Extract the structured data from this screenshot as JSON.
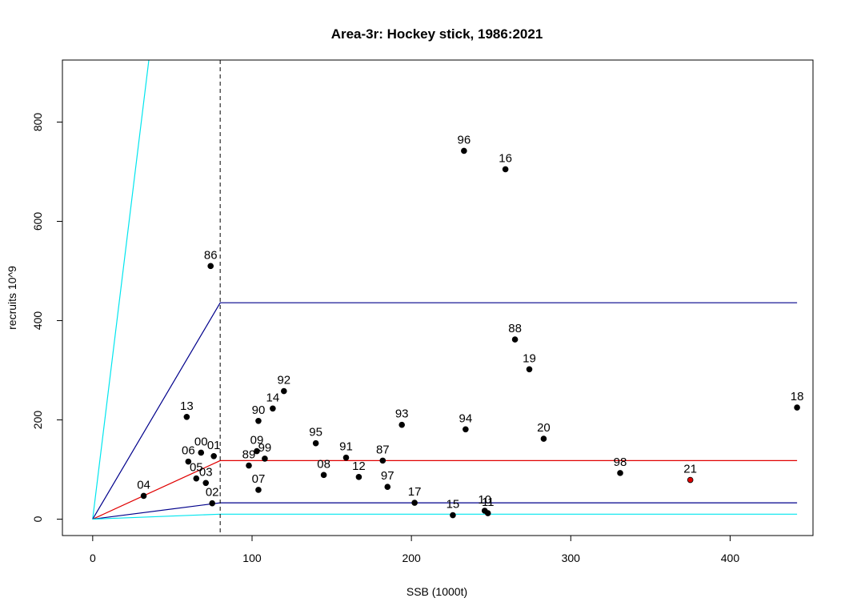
{
  "chart_data": {
    "type": "scatter",
    "title": "Area-3r: Hockey stick, 1986:2021",
    "xlabel": "SSB (1000t)",
    "ylabel": "recruits 10^9",
    "xlim": [
      -19,
      452
    ],
    "ylim": [
      -33,
      925
    ],
    "xticks": [
      0,
      100,
      200,
      300,
      400
    ],
    "yticks": [
      0,
      200,
      400,
      600,
      800
    ],
    "grid": false,
    "breakpoint_ssb": 80,
    "points": [
      {
        "label": "86",
        "x": 74,
        "y": 510
      },
      {
        "label": "87",
        "x": 182,
        "y": 118
      },
      {
        "label": "88",
        "x": 265,
        "y": 362
      },
      {
        "label": "89",
        "x": 98,
        "y": 108
      },
      {
        "label": "90",
        "x": 104,
        "y": 198
      },
      {
        "label": "91",
        "x": 159,
        "y": 124
      },
      {
        "label": "92",
        "x": 120,
        "y": 258
      },
      {
        "label": "93",
        "x": 194,
        "y": 190
      },
      {
        "label": "94",
        "x": 234,
        "y": 181
      },
      {
        "label": "95",
        "x": 140,
        "y": 153
      },
      {
        "label": "96",
        "x": 233,
        "y": 742
      },
      {
        "label": "97",
        "x": 185,
        "y": 65
      },
      {
        "label": "98",
        "x": 331,
        "y": 93
      },
      {
        "label": "99",
        "x": 108,
        "y": 122
      },
      {
        "label": "00",
        "x": 68,
        "y": 134
      },
      {
        "label": "01",
        "x": 76,
        "y": 127
      },
      {
        "label": "02",
        "x": 75,
        "y": 32
      },
      {
        "label": "03",
        "x": 71,
        "y": 73
      },
      {
        "label": "04",
        "x": 32,
        "y": 47
      },
      {
        "label": "05",
        "x": 65,
        "y": 82
      },
      {
        "label": "06",
        "x": 60,
        "y": 116
      },
      {
        "label": "07",
        "x": 104,
        "y": 59
      },
      {
        "label": "08",
        "x": 145,
        "y": 89
      },
      {
        "label": "09",
        "x": 103,
        "y": 137
      },
      {
        "label": "10",
        "x": 246,
        "y": 17
      },
      {
        "label": "11",
        "x": 248,
        "y": 12
      },
      {
        "label": "12",
        "x": 167,
        "y": 85
      },
      {
        "label": "13",
        "x": 59,
        "y": 206
      },
      {
        "label": "14",
        "x": 113,
        "y": 223
      },
      {
        "label": "15",
        "x": 226,
        "y": 8
      },
      {
        "label": "16",
        "x": 259,
        "y": 705
      },
      {
        "label": "17",
        "x": 202,
        "y": 33
      },
      {
        "label": "18",
        "x": 442,
        "y": 225
      },
      {
        "label": "19",
        "x": 274,
        "y": 302
      },
      {
        "label": "20",
        "x": 283,
        "y": 162
      },
      {
        "label": "21",
        "x": 375,
        "y": 79
      }
    ],
    "highlight_label": "21",
    "highlight_color": "#e00000",
    "point_color": "#000000",
    "lines": [
      {
        "name": "upper-cyan",
        "color": "#00e5ee",
        "path": [
          [
            0,
            0
          ],
          [
            80,
            2100
          ],
          [
            442,
            2100
          ]
        ]
      },
      {
        "name": "upper-blue",
        "color": "#00008b",
        "path": [
          [
            0,
            0
          ],
          [
            80,
            436
          ],
          [
            442,
            436
          ]
        ]
      },
      {
        "name": "median-red",
        "color": "#e00000",
        "path": [
          [
            0,
            0
          ],
          [
            80,
            118
          ],
          [
            442,
            118
          ]
        ]
      },
      {
        "name": "lower-blue",
        "color": "#00008b",
        "path": [
          [
            0,
            0
          ],
          [
            80,
            33
          ],
          [
            442,
            33
          ]
        ]
      },
      {
        "name": "lower-cyan",
        "color": "#00e5ee",
        "path": [
          [
            0,
            0
          ],
          [
            80,
            10
          ],
          [
            442,
            10
          ]
        ]
      }
    ],
    "vline_color": "#000000"
  }
}
